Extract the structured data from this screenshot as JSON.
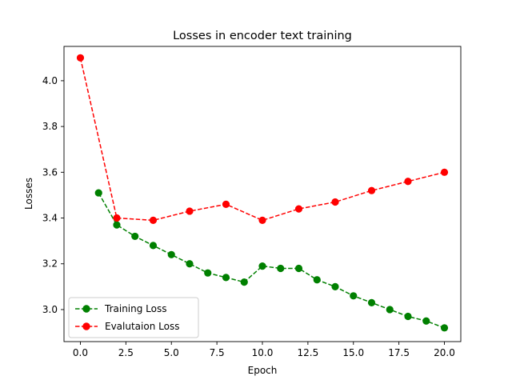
{
  "chart_data": {
    "type": "line",
    "title": "Losses in encoder text training",
    "xlabel": "Epoch",
    "ylabel": "Losses",
    "xlim": [
      -0.9,
      20.9
    ],
    "ylim": [
      2.86,
      4.15
    ],
    "xticks": [
      "0.0",
      "2.5",
      "5.0",
      "7.5",
      "10.0",
      "12.5",
      "15.0",
      "17.5",
      "20.0"
    ],
    "yticks": [
      "3.0",
      "3.2",
      "3.4",
      "3.6",
      "3.8",
      "4.0"
    ],
    "grid": false,
    "legend_position": "lower-left",
    "series": [
      {
        "name": "Training Loss",
        "color": "#008000",
        "linestyle": "dashed",
        "marker": "circle",
        "x": [
          1,
          2,
          3,
          4,
          5,
          6,
          7,
          8,
          9,
          10,
          11,
          12,
          13,
          14,
          15,
          16,
          17,
          18,
          19,
          20
        ],
        "y": [
          3.51,
          3.37,
          3.32,
          3.28,
          3.24,
          3.2,
          3.16,
          3.14,
          3.12,
          3.19,
          3.18,
          3.18,
          3.13,
          3.1,
          3.06,
          3.03,
          3.0,
          2.97,
          2.95,
          2.92
        ]
      },
      {
        "name": "Evalutaion Loss",
        "color": "#ff0000",
        "linestyle": "dashed",
        "marker": "circle",
        "x": [
          0,
          2,
          4,
          6,
          8,
          10,
          12,
          14,
          16,
          18,
          20
        ],
        "y": [
          4.1,
          3.4,
          3.39,
          3.43,
          3.46,
          3.39,
          3.44,
          3.47,
          3.52,
          3.56,
          3.6
        ]
      }
    ]
  }
}
